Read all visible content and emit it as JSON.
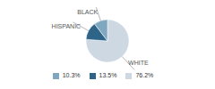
{
  "chart_data": {
    "type": "pie",
    "categories": [
      "WHITE",
      "HISPANIC",
      "BLACK"
    ],
    "values": [
      76.2,
      13.5,
      10.3
    ],
    "value_labels": [
      "76.2%",
      "13.5%",
      "10.3%"
    ],
    "colors": [
      "#cdd8e3",
      "#2e6488",
      "#7fa8c0"
    ],
    "legend": "bottom"
  }
}
